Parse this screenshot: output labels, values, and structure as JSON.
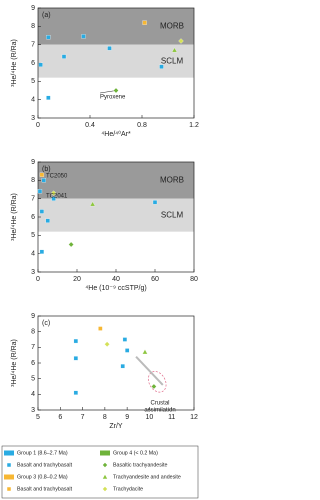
{
  "chart_data": [
    {
      "type": "scatter",
      "panel_label": "(a)",
      "x_label": "⁴He/⁴⁰Ar*",
      "y_label": "³He/⁴He (R/Ra)",
      "xlim": [
        0,
        1.2
      ],
      "xticks": [
        0,
        0.4,
        0.8,
        1.2
      ],
      "ylim": [
        3,
        9
      ],
      "yticks": [
        3,
        4,
        5,
        6,
        7,
        8,
        9
      ],
      "bands": [
        {
          "label": "MORB",
          "range": [
            7,
            9
          ],
          "color": "#9a9a9a"
        },
        {
          "label": "SCLM",
          "range": [
            5.2,
            7
          ],
          "color": "#d9d9d9"
        }
      ],
      "series": [
        {
          "marker": "square",
          "color": "#29abe2",
          "x": [
            0.08,
            0.02,
            0.2,
            0.35,
            0.55,
            0.08,
            0.95
          ],
          "values": [
            7.4,
            5.9,
            6.35,
            7.45,
            6.8,
            4.1,
            5.8
          ]
        },
        {
          "marker": "square",
          "color": "#f7b733",
          "x": [
            0.82
          ],
          "values": [
            8.2
          ]
        },
        {
          "marker": "triangle",
          "color": "#8dc63f",
          "x": [
            1.05
          ],
          "values": [
            6.7
          ]
        },
        {
          "marker": "diamond",
          "color": "#d4e157",
          "x": [
            1.1
          ],
          "values": [
            7.2
          ]
        },
        {
          "marker": "diamond",
          "color": "#6fb33a",
          "x": [
            0.6
          ],
          "values": [
            4.5
          ]
        }
      ],
      "annotations": [
        "Pyroxene"
      ]
    },
    {
      "type": "scatter",
      "panel_label": "(b)",
      "x_label": "⁴He (10⁻⁹ ccSTP/g)",
      "y_label": "³He/⁴He (R/Ra)",
      "xlim": [
        0,
        80
      ],
      "xticks": [
        0,
        20,
        40,
        60,
        80
      ],
      "ylim": [
        3,
        9
      ],
      "yticks": [
        3,
        4,
        5,
        6,
        7,
        8,
        9
      ],
      "bands": [
        {
          "label": "MORB",
          "range": [
            7,
            9
          ],
          "color": "#9a9a9a"
        },
        {
          "label": "SCLM",
          "range": [
            5.2,
            7
          ],
          "color": "#d9d9d9"
        }
      ],
      "series": [
        {
          "marker": "square",
          "color": "#29abe2",
          "x": [
            1,
            3,
            2,
            5,
            8,
            2,
            60
          ],
          "values": [
            7.4,
            8.0,
            6.3,
            5.8,
            7.0,
            4.1,
            6.8
          ]
        },
        {
          "marker": "square",
          "color": "#f7b733",
          "x": [
            2
          ],
          "values": [
            8.3
          ]
        },
        {
          "marker": "triangle",
          "color": "#8dc63f",
          "x": [
            28
          ],
          "values": [
            6.7
          ]
        },
        {
          "marker": "diamond",
          "color": "#d4e157",
          "x": [
            8
          ],
          "values": [
            7.3
          ]
        },
        {
          "marker": "diamond",
          "color": "#6fb33a",
          "x": [
            17
          ],
          "values": [
            4.5
          ]
        }
      ],
      "annotations": [
        "TC2050",
        "TC2041"
      ]
    },
    {
      "type": "scatter",
      "panel_label": "(c)",
      "x_label": "Zr/Y",
      "y_label": "³He/⁴He (R/Ra)",
      "xlim": [
        5,
        12
      ],
      "xticks": [
        5,
        6,
        7,
        8,
        9,
        10,
        11,
        12
      ],
      "ylim": [
        3,
        9
      ],
      "yticks": [
        3,
        4,
        5,
        6,
        7,
        8,
        9
      ],
      "series": [
        {
          "marker": "square",
          "color": "#29abe2",
          "x": [
            6.7,
            6.7,
            8.9,
            6.7,
            9.0,
            8.8
          ],
          "values": [
            7.4,
            6.3,
            7.5,
            4.1,
            6.8,
            5.8
          ]
        },
        {
          "marker": "square",
          "color": "#f7b733",
          "x": [
            7.8
          ],
          "values": [
            8.2
          ]
        },
        {
          "marker": "triangle",
          "color": "#8dc63f",
          "x": [
            9.8
          ],
          "values": [
            6.7
          ]
        },
        {
          "marker": "diamond",
          "color": "#d4e157",
          "x": [
            8.1
          ],
          "values": [
            7.2
          ]
        },
        {
          "marker": "diamond",
          "color": "#6fb33a",
          "x": [
            10.2
          ],
          "values": [
            4.5
          ]
        }
      ],
      "annotations": [
        "Crustal",
        "assimilation"
      ]
    }
  ],
  "legend": [
    {
      "label": "Group 1 (8.6–2.7 Ma)",
      "marker": "box",
      "color": "#29abe2"
    },
    {
      "label": "Basalt and trachybasalt",
      "marker": "square",
      "color": "#29abe2"
    },
    {
      "label": "Group 3 (0.8–0.2 Ma)",
      "marker": "box",
      "color": "#f7b733"
    },
    {
      "label": "Basalt and trachybasalt",
      "marker": "square",
      "color": "#f7b733"
    },
    {
      "label": "Group 4 (< 0.2 Ma)",
      "marker": "box",
      "color": "#6fb33a"
    },
    {
      "label": "Basaltic trachyandesite",
      "marker": "diamond",
      "color": "#6fb33a"
    },
    {
      "label": "Trachyandesite and andesite",
      "marker": "triangle",
      "color": "#8dc63f"
    },
    {
      "label": "Trachydacite",
      "marker": "diamond",
      "color": "#d4e157"
    }
  ]
}
